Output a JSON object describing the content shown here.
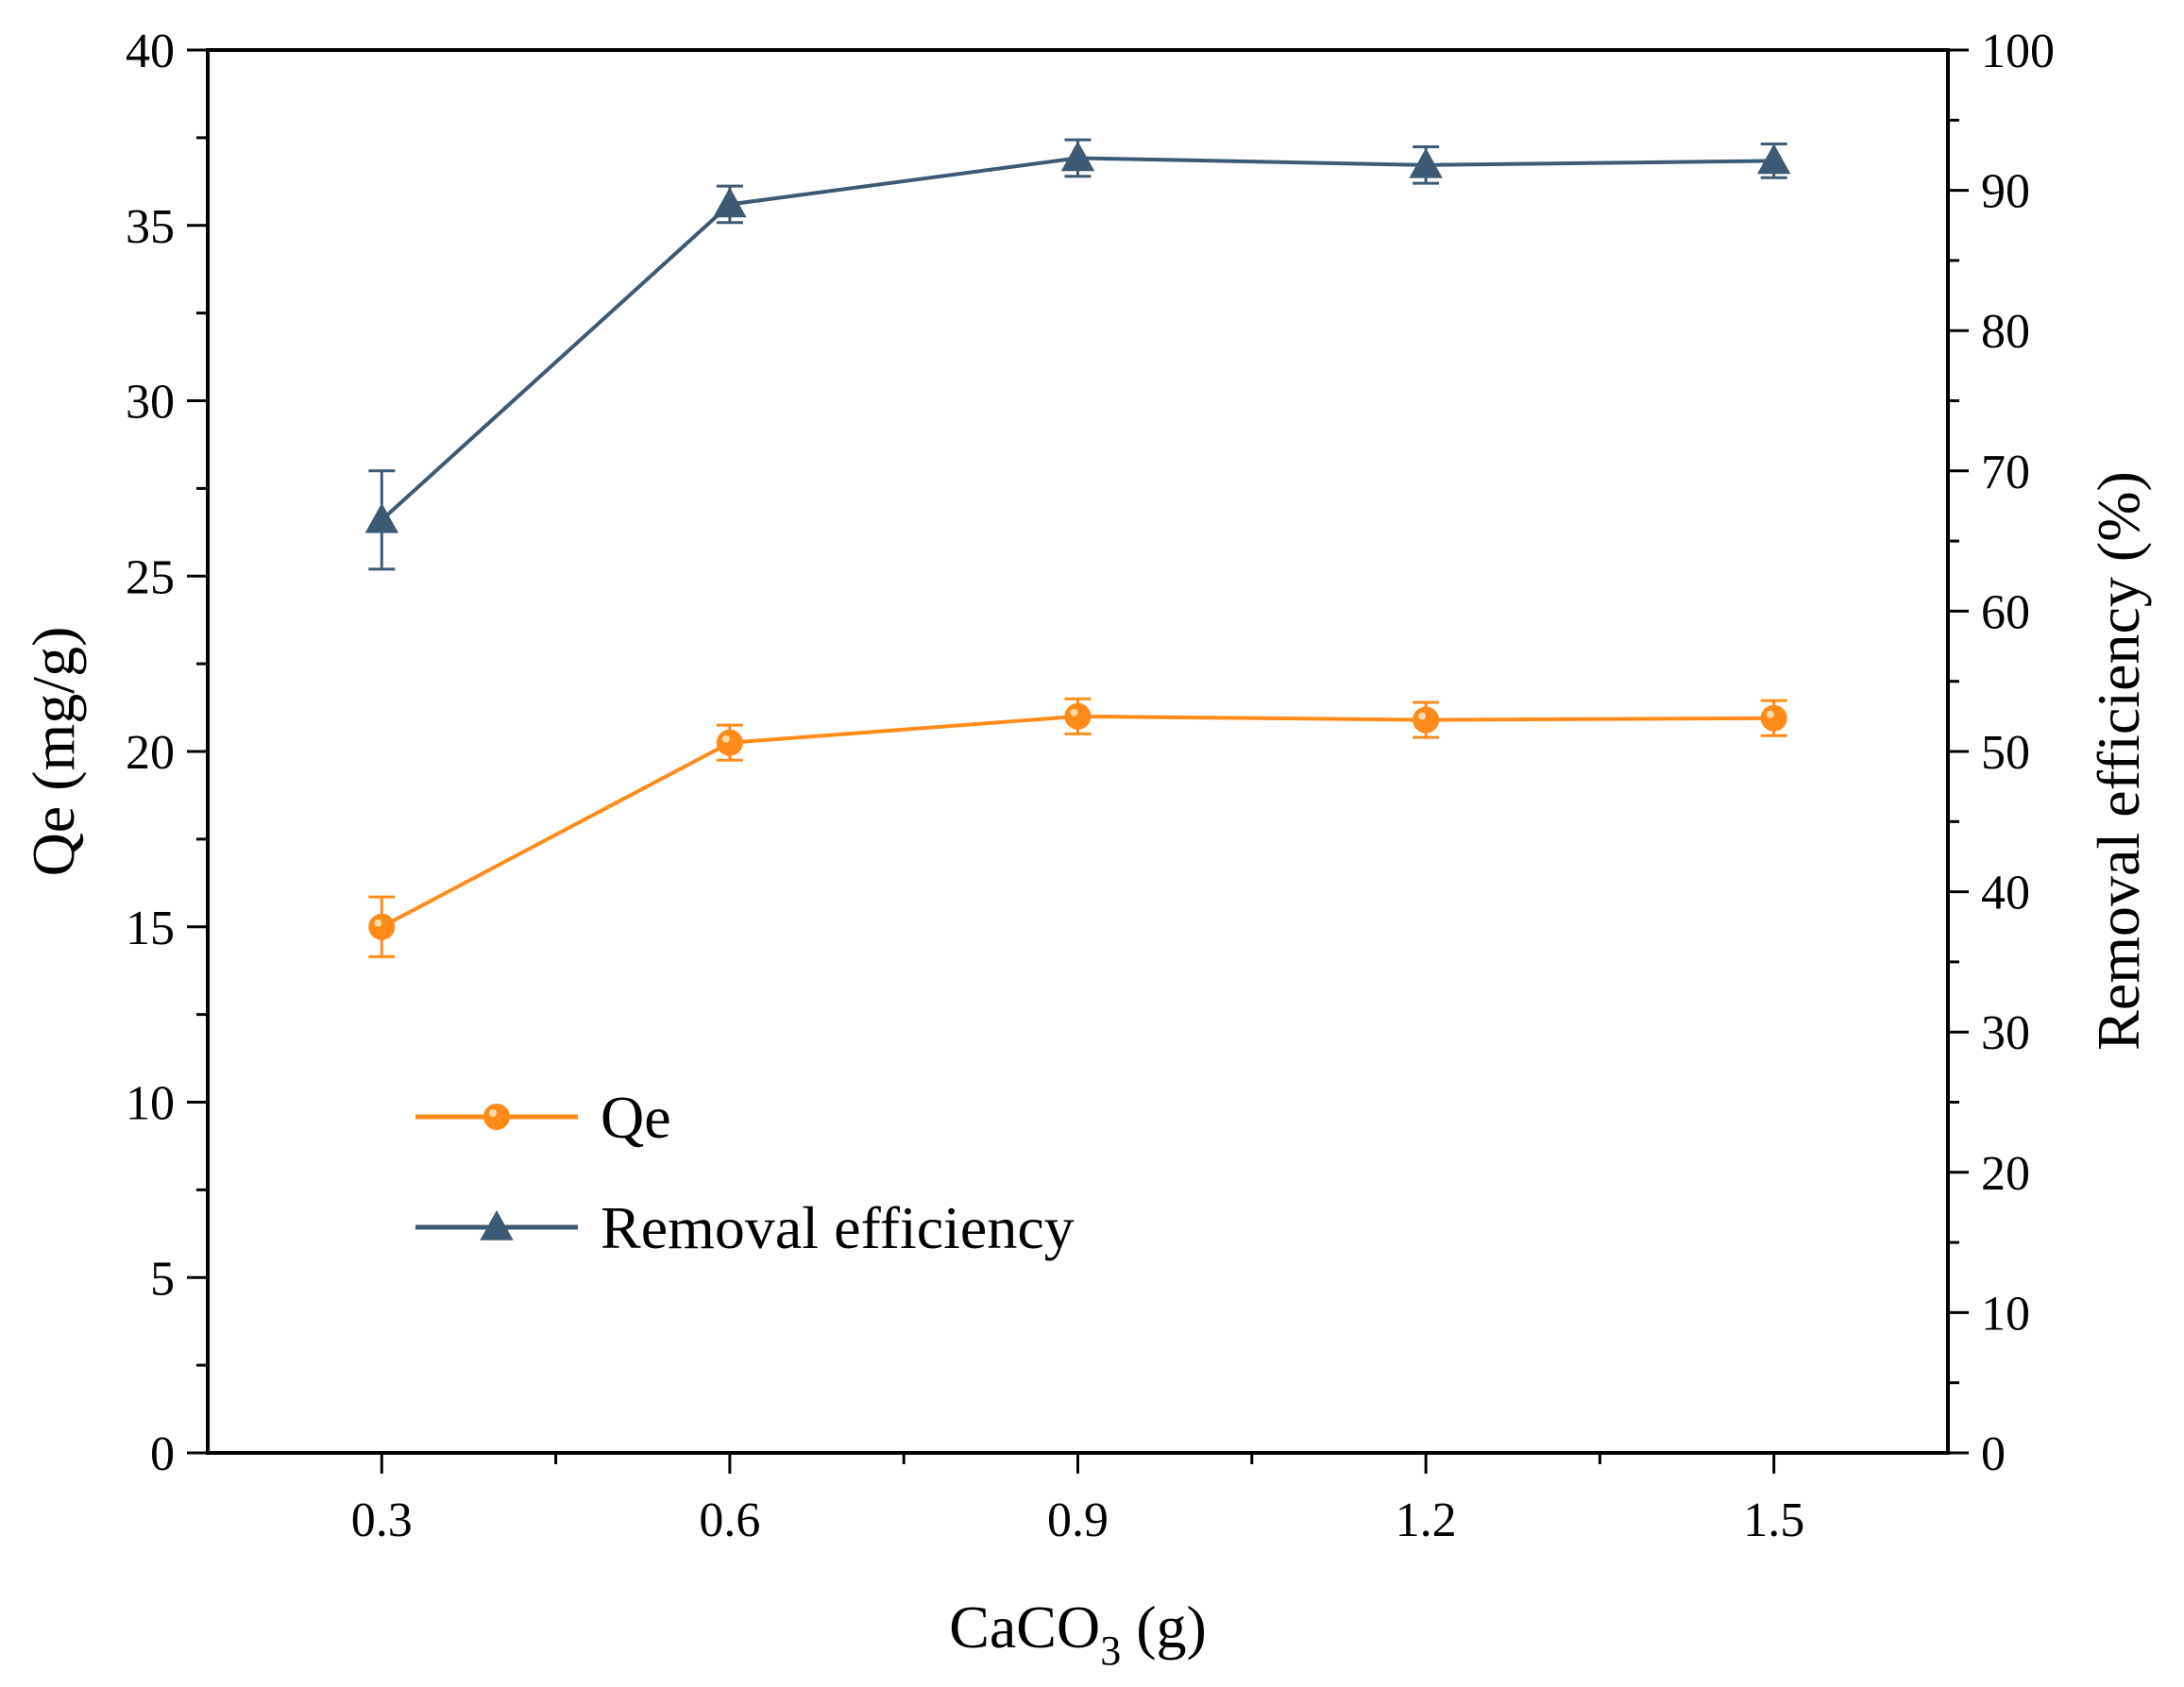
{
  "chart_data": {
    "type": "line",
    "xlabel": {
      "main": "CaCO",
      "sub": "3",
      "unit": " (g)"
    },
    "ylabel_left": "Qe (mg/g)",
    "ylabel_right": "Removal efficiency (%)",
    "xlim": [
      0.15,
      1.65
    ],
    "ylim_left": [
      0,
      40
    ],
    "ylim_right": [
      0,
      100
    ],
    "x_ticks": [
      0.3,
      0.6,
      0.9,
      1.2,
      1.5
    ],
    "x_tick_labels": [
      "0.3",
      "0.6",
      "0.9",
      "1.2",
      "1.5"
    ],
    "y_left_ticks": [
      0,
      5,
      10,
      15,
      20,
      25,
      30,
      35,
      40
    ],
    "y_left_tick_labels": [
      "0",
      "5",
      "10",
      "15",
      "20",
      "25",
      "30",
      "35",
      "40"
    ],
    "y_right_ticks": [
      0,
      10,
      20,
      30,
      40,
      50,
      60,
      70,
      80,
      90,
      100
    ],
    "y_right_tick_labels": [
      "0",
      "10",
      "20",
      "30",
      "40",
      "50",
      "60",
      "70",
      "80",
      "90",
      "100"
    ],
    "grid": false,
    "legend_position": "lower-left",
    "x": [
      0.3,
      0.6,
      0.9,
      1.2,
      1.5
    ],
    "series": [
      {
        "name": "Qe",
        "axis": "left",
        "marker": "circle",
        "color": "#ff8c1a",
        "values": [
          15.0,
          20.25,
          21.0,
          20.9,
          20.95
        ],
        "errors": [
          0.85,
          0.5,
          0.5,
          0.5,
          0.5
        ]
      },
      {
        "name": "Removal efficiency",
        "axis": "right",
        "marker": "triangle",
        "color": "#3d5a74",
        "values": [
          66.5,
          89.0,
          92.3,
          91.8,
          92.1
        ],
        "errors": [
          3.5,
          1.3,
          1.3,
          1.3,
          1.2
        ]
      }
    ]
  }
}
